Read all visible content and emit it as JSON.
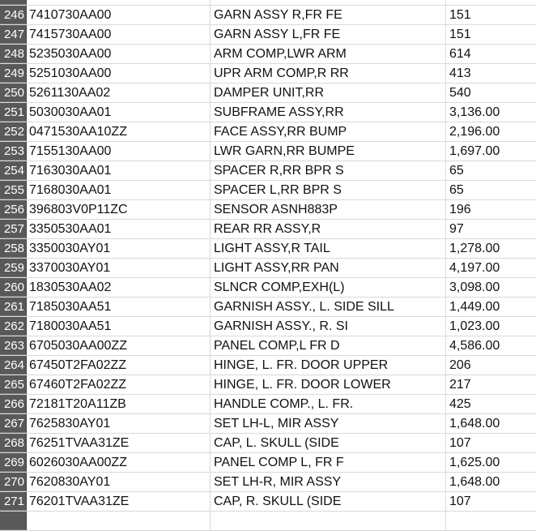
{
  "rows": [
    {
      "n": "",
      "part": "",
      "desc": "",
      "price": ""
    },
    {
      "n": "246",
      "part": "7410730AA00",
      "desc": "GARN ASSY R,FR FE",
      "price": "151"
    },
    {
      "n": "247",
      "part": "7415730AA00",
      "desc": "GARN ASSY L,FR FE",
      "price": "151"
    },
    {
      "n": "248",
      "part": "5235030AA00",
      "desc": "ARM COMP,LWR ARM",
      "price": "614"
    },
    {
      "n": "249",
      "part": "5251030AA00",
      "desc": "UPR ARM COMP,R RR",
      "price": "413"
    },
    {
      "n": "250",
      "part": "5261130AA02",
      "desc": "DAMPER UNIT,RR",
      "price": "540"
    },
    {
      "n": "251",
      "part": "5030030AA01",
      "desc": "SUBFRAME ASSY,RR",
      "price": "3,136.00"
    },
    {
      "n": "252",
      "part": "0471530AA10ZZ",
      "desc": "FACE ASSY,RR BUMP",
      "price": "2,196.00"
    },
    {
      "n": "253",
      "part": "7155130AA00",
      "desc": "LWR GARN,RR BUMPE",
      "price": "1,697.00"
    },
    {
      "n": "254",
      "part": "7163030AA01",
      "desc": "SPACER R,RR BPR S",
      "price": "65"
    },
    {
      "n": "255",
      "part": "7168030AA01",
      "desc": "SPACER L,RR BPR S",
      "price": "65"
    },
    {
      "n": "256",
      "part": "396803V0P11ZC",
      "desc": "SENSOR ASNH883P",
      "price": "196"
    },
    {
      "n": "257",
      "part": "3350530AA01",
      "desc": "REAR RR ASSY,R",
      "price": "97"
    },
    {
      "n": "258",
      "part": "3350030AY01",
      "desc": "LIGHT ASSY,R TAIL",
      "price": "1,278.00"
    },
    {
      "n": "259",
      "part": "3370030AY01",
      "desc": "LIGHT ASSY,RR PAN",
      "price": "4,197.00"
    },
    {
      "n": "260",
      "part": "1830530AA02",
      "desc": "SLNCR COMP,EXH(L)",
      "price": "3,098.00"
    },
    {
      "n": "261",
      "part": "7185030AA51",
      "desc": "GARNISH ASSY., L. SIDE SILL",
      "price": "1,449.00"
    },
    {
      "n": "262",
      "part": "7180030AA51",
      "desc": "GARNISH ASSY., R. SI",
      "price": "1,023.00"
    },
    {
      "n": "263",
      "part": "6705030AA00ZZ",
      "desc": "PANEL COMP,L FR D",
      "price": "4,586.00"
    },
    {
      "n": "264",
      "part": "67450T2FA02ZZ",
      "desc": "HINGE, L. FR. DOOR UPPER",
      "price": "206"
    },
    {
      "n": "265",
      "part": "67460T2FA02ZZ",
      "desc": "HINGE, L. FR. DOOR LOWER",
      "price": "217"
    },
    {
      "n": "266",
      "part": "72181T20A11ZB",
      "desc": "HANDLE COMP., L. FR.",
      "price": "425"
    },
    {
      "n": "267",
      "part": "7625830AY01",
      "desc": "SET LH-L, MIR ASSY",
      "price": "1,648.00"
    },
    {
      "n": "268",
      "part": "76251TVAA31ZE",
      "desc": "CAP, L. SKULL (SIDE",
      "price": "107"
    },
    {
      "n": "269",
      "part": "6026030AA00ZZ",
      "desc": "PANEL COMP L, FR F",
      "price": "1,625.00"
    },
    {
      "n": "270",
      "part": "7620830AY01",
      "desc": "SET LH-R, MIR ASSY",
      "price": "1,648.00"
    },
    {
      "n": "271",
      "part": "76201TVAA31ZE",
      "desc": "CAP, R. SKULL (SIDE",
      "price": "107"
    },
    {
      "n": "",
      "part": "",
      "desc": "",
      "price": ""
    }
  ]
}
